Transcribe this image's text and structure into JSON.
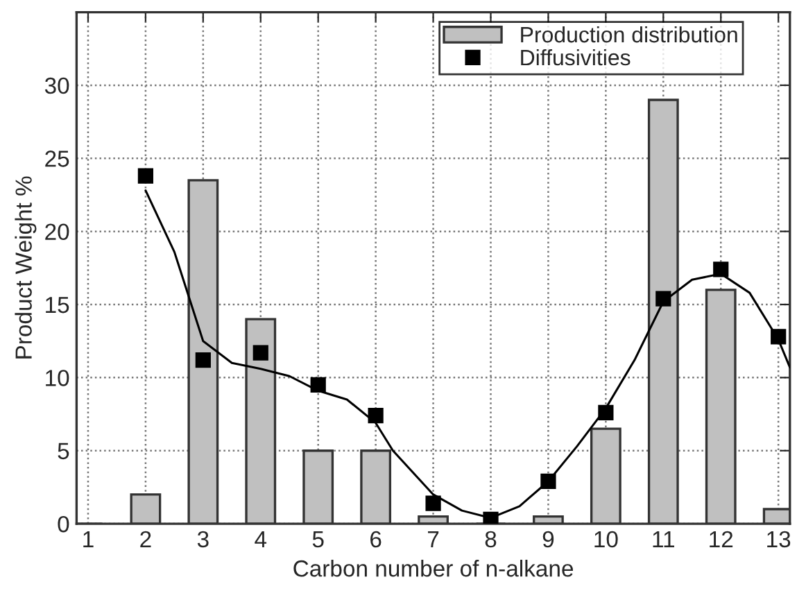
{
  "chart_data": {
    "type": "bar",
    "xlabel": "Carbon number of n-alkane",
    "ylabel": "Product Weight %",
    "x": [
      1,
      2,
      3,
      4,
      5,
      6,
      7,
      8,
      9,
      10,
      11,
      12,
      13
    ],
    "xlim": [
      0.8,
      13.2
    ],
    "xticks": [
      1,
      2,
      3,
      4,
      5,
      6,
      7,
      8,
      9,
      10,
      11,
      12,
      13
    ],
    "ylim": [
      0,
      35
    ],
    "yticks": [
      0,
      5,
      10,
      15,
      20,
      25,
      30
    ],
    "grid": true,
    "legend": "top right",
    "series": [
      {
        "name": "Production distribution",
        "color": "#c0c0c0",
        "values": [
          0,
          2,
          23.5,
          14,
          5,
          5,
          0.5,
          0,
          0.5,
          6.5,
          29,
          16,
          1
        ]
      },
      {
        "type": "scatter",
        "name": "Diffusivities",
        "color": "#000000",
        "marker": "square",
        "x": [
          2,
          3,
          4,
          5,
          6,
          7,
          8,
          9,
          10,
          11,
          12,
          13
        ],
        "values": [
          23.8,
          11.2,
          11.7,
          9.5,
          7.4,
          1.4,
          0.3,
          2.9,
          7.6,
          15.4,
          17.4,
          12.8
        ]
      },
      {
        "type": "line",
        "color": "#000000",
        "line_style": "solid",
        "marker": "none",
        "x": [
          2,
          2.5,
          3,
          3.5,
          4,
          4.5,
          5,
          5.5,
          6,
          6.3,
          7,
          7.5,
          8,
          8.5,
          9,
          9.5,
          10,
          10.5,
          11,
          11.5,
          12,
          12.5,
          13,
          13.2
        ],
        "values": [
          22.8,
          18.6,
          12.5,
          11.0,
          10.6,
          10.1,
          9.1,
          8.5,
          6.9,
          5.0,
          2.0,
          0.9,
          0.4,
          1.2,
          2.9,
          5.3,
          7.9,
          11.2,
          15.2,
          16.7,
          17.1,
          15.8,
          12.6,
          10.7
        ]
      }
    ]
  }
}
